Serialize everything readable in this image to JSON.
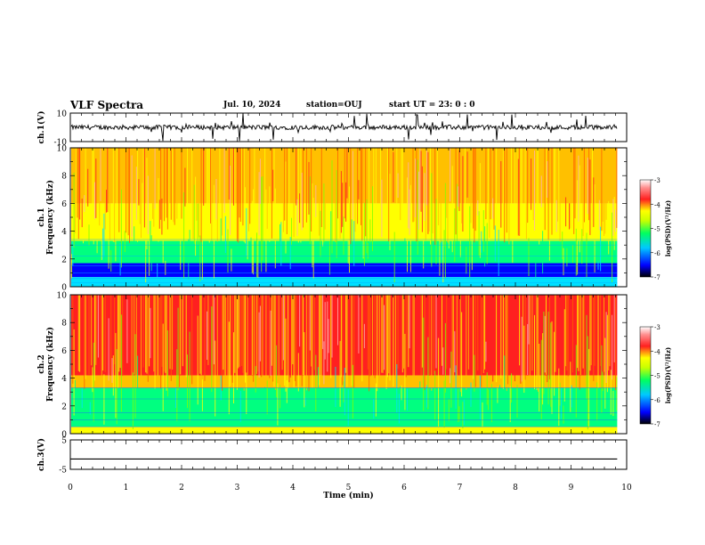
{
  "header": {
    "title": "VLF Spectra",
    "date": "Jul. 10, 2024",
    "station": "station=OUJ",
    "start": "start UT =  23: 0  : 0"
  },
  "colors": {
    "spectro_scale": [
      "#000080",
      "#0000ff",
      "#0080ff",
      "#00e0ff",
      "#00ff80",
      "#80ff00",
      "#ffff00",
      "#ffc000",
      "#ff6000",
      "#ff2020",
      "#ffb0b0",
      "#ffffff"
    ]
  },
  "chart_data": [
    {
      "type": "line",
      "panel": "ch1-waveform",
      "ylabel": "ch.1(V)",
      "ylim": [
        -10,
        10
      ],
      "ytick_labels": [
        "10",
        "-10"
      ],
      "xlim": [
        0,
        10
      ],
      "baseline": 0,
      "note_values": "noisy waveform around 0 V with spikes up to about ±10 V"
    },
    {
      "type": "heatmap",
      "panel": "ch1-spectrogram",
      "ylabel": "ch.1\nFrequency (kHz)",
      "ylim": [
        0,
        10
      ],
      "ytick_labels": [
        "0",
        "2",
        "4",
        "6",
        "8",
        "10"
      ],
      "xlim": [
        0,
        9.83
      ],
      "bands": [
        {
          "from": 0.0,
          "to": 0.7,
          "level": 3
        },
        {
          "from": 0.7,
          "to": 1.7,
          "level": 1
        },
        {
          "from": 1.7,
          "to": 3.3,
          "level": 4
        },
        {
          "from": 3.3,
          "to": 6.0,
          "level": 6
        },
        {
          "from": 6.0,
          "to": 10.0,
          "level": 7
        }
      ],
      "colorbar": {
        "label": "log(PSD)(V²/Hz)",
        "ticks": [
          "-3",
          "-4",
          "-5",
          "-6",
          "-7"
        ],
        "range": [
          -7,
          -3
        ]
      }
    },
    {
      "type": "heatmap",
      "panel": "ch2-spectrogram",
      "ylabel": "ch.2\nFrequency (kHz)",
      "ylim": [
        0,
        10
      ],
      "ytick_labels": [
        "0",
        "2",
        "4",
        "6",
        "8",
        "10"
      ],
      "xlim": [
        0,
        9.83
      ],
      "bands": [
        {
          "from": 0.0,
          "to": 0.5,
          "level": 6
        },
        {
          "from": 0.5,
          "to": 3.3,
          "level": 4
        },
        {
          "from": 3.3,
          "to": 4.2,
          "level": 7
        },
        {
          "from": 4.2,
          "to": 10.0,
          "level": 9
        }
      ],
      "colorbar": {
        "label": "log(PSD)(V²/Hz)",
        "ticks": [
          "-3",
          "-4",
          "-5",
          "-6",
          "-7"
        ],
        "range": [
          -7,
          -3
        ]
      }
    },
    {
      "type": "line",
      "panel": "ch3-waveform",
      "ylabel": "ch.3(V)",
      "ylim": [
        -5,
        5
      ],
      "ytick_labels": [
        "5",
        "-5"
      ],
      "xlim": [
        0,
        10
      ],
      "x": [
        0,
        9.83
      ],
      "y": [
        -1.5,
        -1.5
      ]
    }
  ],
  "xaxis": {
    "label": "Time (min)",
    "ticks": [
      "0",
      "1",
      "2",
      "3",
      "4",
      "5",
      "6",
      "7",
      "8",
      "9",
      "10"
    ],
    "range": [
      0,
      10
    ]
  }
}
